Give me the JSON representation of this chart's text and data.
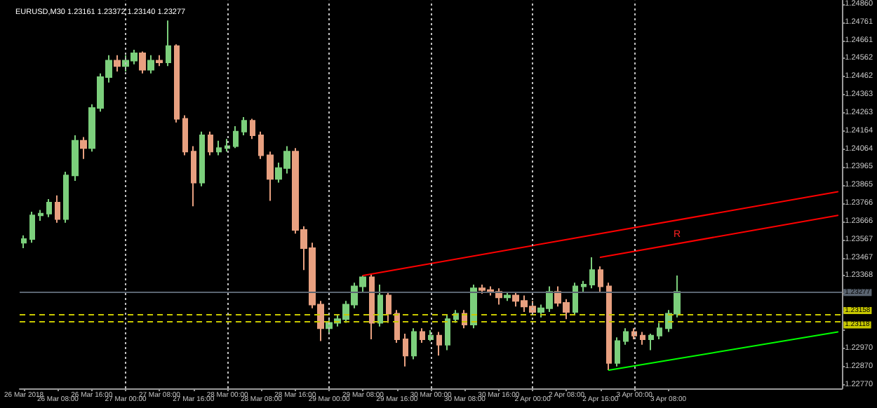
{
  "chart_data": {
    "type": "candlestick",
    "title": "EURUSD,M30 1.23161 1.23372 1.23140 1.23277",
    "categories": [
      "26 Mar 2018",
      null,
      null,
      null,
      "26 Mar 08:00",
      null,
      null,
      null,
      "26 Mar 16:00",
      null,
      null,
      null,
      "27 Mar 00:00",
      null,
      null,
      null,
      "27 Mar 08:00",
      null,
      null,
      null,
      "27 Mar 16:00",
      null,
      null,
      null,
      "28 Mar 00:00",
      null,
      null,
      null,
      "28 Mar 08:00",
      null,
      null,
      null,
      "28 Mar 16:00",
      null,
      null,
      null,
      "29 Mar 00:00",
      null,
      null,
      null,
      "29 Mar 08:00",
      null,
      null,
      null,
      "29 Mar 16:00",
      null,
      null,
      null,
      "30 Mar 00:00",
      null,
      null,
      null,
      "30 Mar 08:00",
      null,
      null,
      null,
      "30 Mar 16:00",
      null,
      null,
      null,
      "2 Apr 00:00",
      null,
      null,
      null,
      "2 Apr 08:00",
      null,
      null,
      null,
      "2 Apr 16:00",
      null,
      null,
      null,
      "3 Apr 00:00",
      null,
      null,
      null,
      "3 Apr 08:00",
      null,
      null,
      null,
      null,
      null,
      null,
      null,
      null,
      null,
      null,
      null,
      null,
      null,
      null,
      null,
      null,
      null,
      null,
      null,
      null
    ],
    "ohlc": [
      [
        1.2355,
        1.2359,
        1.2352,
        1.2357
      ],
      [
        1.2357,
        1.2372,
        1.2355,
        1.237
      ],
      [
        1.237,
        1.2373,
        1.2367,
        1.2371
      ],
      [
        1.2371,
        1.2379,
        1.2369,
        1.2377
      ],
      [
        1.2377,
        1.2381,
        1.2366,
        1.2368
      ],
      [
        1.2368,
        1.2394,
        1.2366,
        1.2392
      ],
      [
        1.2392,
        1.2414,
        1.2389,
        1.2411
      ],
      [
        1.2411,
        1.2413,
        1.2401,
        1.2407
      ],
      [
        1.2407,
        1.2431,
        1.2405,
        1.2429
      ],
      [
        1.2429,
        1.2448,
        1.2427,
        1.2446
      ],
      [
        1.2446,
        1.2458,
        1.2443,
        1.2455
      ],
      [
        1.2455,
        1.2458,
        1.2449,
        1.2452
      ],
      [
        1.2452,
        1.2458,
        1.2449,
        1.2455
      ],
      [
        1.2455,
        1.2461,
        1.2453,
        1.2459
      ],
      [
        1.2459,
        1.246,
        1.2448,
        1.245
      ],
      [
        1.245,
        1.2458,
        1.2448,
        1.2455
      ],
      [
        1.2455,
        1.2458,
        1.2452,
        1.2454
      ],
      [
        1.2454,
        1.2477,
        1.2452,
        1.2463
      ],
      [
        1.2463,
        1.2464,
        1.2421,
        1.2423
      ],
      [
        1.2423,
        1.2425,
        1.2403,
        1.2405
      ],
      [
        1.2405,
        1.2408,
        1.2375,
        1.2388
      ],
      [
        1.2388,
        1.2416,
        1.2386,
        1.2414
      ],
      [
        1.2414,
        1.2416,
        1.2403,
        1.2405
      ],
      [
        1.2405,
        1.2411,
        1.2403,
        1.2407
      ],
      [
        1.2407,
        1.2412,
        1.2405,
        1.2408
      ],
      [
        1.2408,
        1.2419,
        1.2407,
        1.2416
      ],
      [
        1.2416,
        1.2424,
        1.2414,
        1.2422
      ],
      [
        1.2422,
        1.2423,
        1.2412,
        1.2414
      ],
      [
        1.2414,
        1.2416,
        1.2401,
        1.2403
      ],
      [
        1.2403,
        1.2405,
        1.2378,
        1.239
      ],
      [
        1.239,
        1.2399,
        1.2388,
        1.2396
      ],
      [
        1.2396,
        1.2408,
        1.2393,
        1.2405
      ],
      [
        1.2405,
        1.2407,
        1.236,
        1.2362
      ],
      [
        1.2362,
        1.2364,
        1.234,
        1.2352
      ],
      [
        1.2352,
        1.2355,
        1.2319,
        1.2321
      ],
      [
        1.2321,
        1.2323,
        1.2301,
        1.2308
      ],
      [
        1.2308,
        1.2314,
        1.2305,
        1.2311
      ],
      [
        1.2311,
        1.2315,
        1.2309,
        1.2313
      ],
      [
        1.2313,
        1.2323,
        1.2311,
        1.2321
      ],
      [
        1.2321,
        1.2333,
        1.2319,
        1.2331
      ],
      [
        1.2331,
        1.2337,
        1.2328,
        1.2336
      ],
      [
        1.2336,
        1.2338,
        1.2302,
        1.2311
      ],
      [
        1.2311,
        1.2332,
        1.2309,
        1.2326
      ],
      [
        1.2326,
        1.2328,
        1.2311,
        1.2316
      ],
      [
        1.2316,
        1.2318,
        1.23,
        1.2302
      ],
      [
        1.2302,
        1.2305,
        1.2287,
        1.2293
      ],
      [
        1.2293,
        1.2308,
        1.2291,
        1.2306
      ],
      [
        1.2306,
        1.2308,
        1.23,
        1.2302
      ],
      [
        1.2302,
        1.2307,
        1.2301,
        1.2304
      ],
      [
        1.2304,
        1.2306,
        1.2293,
        1.2299
      ],
      [
        1.2299,
        1.2315,
        1.2296,
        1.2313
      ],
      [
        1.2313,
        1.2318,
        1.2311,
        1.2316
      ],
      [
        1.2316,
        1.2318,
        1.2308,
        1.231
      ],
      [
        1.231,
        1.2332,
        1.2308,
        1.233
      ],
      [
        1.233,
        1.2332,
        1.2327,
        1.2329
      ],
      [
        1.2329,
        1.2331,
        1.2326,
        1.2328
      ],
      [
        1.2328,
        1.233,
        1.2321,
        1.2325
      ],
      [
        1.2325,
        1.2328,
        1.2323,
        1.2326
      ],
      [
        1.2326,
        1.2328,
        1.232,
        1.2323
      ],
      [
        1.2323,
        1.2326,
        1.2317,
        1.232
      ],
      [
        1.232,
        1.2323,
        1.2315,
        1.2317
      ],
      [
        1.2317,
        1.2321,
        1.2314,
        1.2319
      ],
      [
        1.2319,
        1.2331,
        1.2317,
        1.2328
      ],
      [
        1.2328,
        1.2331,
        1.232,
        1.2322
      ],
      [
        1.2322,
        1.2324,
        1.2313,
        1.2317
      ],
      [
        1.2317,
        1.2333,
        1.2315,
        1.2331
      ],
      [
        1.2331,
        1.2334,
        1.2328,
        1.2332
      ],
      [
        1.2332,
        1.2347,
        1.233,
        1.234
      ],
      [
        1.234,
        1.2342,
        1.2328,
        1.2331
      ],
      [
        1.2331,
        1.2333,
        1.2285,
        1.2289
      ],
      [
        1.2289,
        1.2303,
        1.2287,
        1.2301
      ],
      [
        1.2301,
        1.2308,
        1.2299,
        1.2306
      ],
      [
        1.2306,
        1.2308,
        1.2302,
        1.2304
      ],
      [
        1.2304,
        1.2306,
        1.2299,
        1.2302
      ],
      [
        1.2302,
        1.2305,
        1.2296,
        1.2304
      ],
      [
        1.2304,
        1.2311,
        1.2302,
        1.2308
      ],
      [
        1.2308,
        1.2318,
        1.2306,
        1.2316
      ],
      [
        1.2316,
        1.2337,
        1.2314,
        1.2328
      ],
      null,
      null,
      null,
      null,
      null,
      null,
      null,
      null,
      null,
      null,
      null,
      null,
      null,
      null,
      null,
      null,
      null,
      null,
      null
    ],
    "series": [
      {
        "type": "line",
        "color": "#ff0000",
        "values": [
          null,
          null,
          null,
          null,
          null,
          null,
          null,
          null,
          null,
          null,
          null,
          null,
          null,
          null,
          null,
          null,
          null,
          null,
          null,
          null,
          null,
          null,
          null,
          null,
          null,
          null,
          null,
          null,
          null,
          null,
          null,
          null,
          null,
          null,
          null,
          null,
          null,
          null,
          null,
          null,
          1.2337,
          null,
          null,
          null,
          null,
          null,
          null,
          null,
          null,
          null,
          null,
          null,
          null,
          null,
          null,
          null,
          null,
          null,
          null,
          null,
          null,
          null,
          null,
          null,
          null,
          null,
          null,
          null,
          null,
          null,
          null,
          null,
          null,
          null,
          null,
          null,
          null,
          null,
          null,
          null,
          null,
          null,
          null,
          null,
          null,
          null,
          null,
          null,
          null,
          null,
          null,
          null,
          null,
          null,
          null,
          null,
          1.2383
        ]
      },
      {
        "type": "line",
        "color": "#ff0000",
        "values": [
          null,
          null,
          null,
          null,
          null,
          null,
          null,
          null,
          null,
          null,
          null,
          null,
          null,
          null,
          null,
          null,
          null,
          null,
          null,
          null,
          null,
          null,
          null,
          null,
          null,
          null,
          null,
          null,
          null,
          null,
          null,
          null,
          null,
          null,
          null,
          null,
          null,
          null,
          null,
          null,
          null,
          null,
          null,
          null,
          null,
          null,
          null,
          null,
          null,
          null,
          null,
          null,
          null,
          null,
          null,
          null,
          null,
          null,
          null,
          null,
          null,
          null,
          null,
          null,
          null,
          null,
          null,
          null,
          1.2347,
          null,
          null,
          null,
          null,
          null,
          null,
          null,
          null,
          null,
          null,
          null,
          null,
          null,
          null,
          null,
          null,
          null,
          null,
          null,
          null,
          null,
          null,
          null,
          null,
          null,
          null,
          null,
          1.237
        ]
      },
      {
        "type": "line",
        "color": "#00ff00",
        "values": [
          null,
          null,
          null,
          null,
          null,
          null,
          null,
          null,
          null,
          null,
          null,
          null,
          null,
          null,
          null,
          null,
          null,
          null,
          null,
          null,
          null,
          null,
          null,
          null,
          null,
          null,
          null,
          null,
          null,
          null,
          null,
          null,
          null,
          null,
          null,
          null,
          null,
          null,
          null,
          null,
          null,
          null,
          null,
          null,
          null,
          null,
          null,
          null,
          null,
          null,
          null,
          null,
          null,
          null,
          null,
          null,
          null,
          null,
          null,
          null,
          null,
          null,
          null,
          null,
          null,
          null,
          null,
          null,
          null,
          1.2285,
          null,
          null,
          null,
          null,
          null,
          null,
          null,
          null,
          null,
          null,
          null,
          null,
          null,
          null,
          null,
          null,
          null,
          null,
          null,
          null,
          null,
          null,
          null,
          null,
          null,
          null,
          1.2306
        ]
      }
    ],
    "ylim": [
      1.2275,
      1.2488
    ],
    "yticks": [
      {
        "value": 1.2486,
        "label": "1.24860"
      },
      {
        "value": 1.24761,
        "label": "1.24761"
      },
      {
        "value": 1.24661,
        "label": "1.24661"
      },
      {
        "value": 1.24562,
        "label": "1.24562"
      },
      {
        "value": 1.24462,
        "label": "1.24462"
      },
      {
        "value": 1.24363,
        "label": "1.24363"
      },
      {
        "value": 1.24263,
        "label": "1.24263"
      },
      {
        "value": 1.24164,
        "label": "1.24164"
      },
      {
        "value": 1.24064,
        "label": "1.24064"
      },
      {
        "value": 1.23965,
        "label": "1.23965"
      },
      {
        "value": 1.23865,
        "label": "1.23865"
      },
      {
        "value": 1.23766,
        "label": "1.23766"
      },
      {
        "value": 1.23666,
        "label": "1.23666"
      },
      {
        "value": 1.23567,
        "label": "1.23567"
      },
      {
        "value": 1.23467,
        "label": "1.23467"
      },
      {
        "value": 1.23368,
        "label": "1.23368"
      },
      {
        "value": 1.23268,
        "label": null
      },
      {
        "value": 1.23169,
        "label": null
      },
      {
        "value": 1.23069,
        "label": null
      },
      {
        "value": 1.2297,
        "label": "1.22970"
      },
      {
        "value": 1.2287,
        "label": "1.22870"
      },
      {
        "value": 1.2277,
        "label": "1.22770"
      }
    ],
    "ref_lines": [
      {
        "axis": "y",
        "value": 1.23277,
        "label": "1.23277",
        "color": "#5a6470",
        "line_style": "solid"
      },
      {
        "axis": "y",
        "value": 1.23158,
        "label": "1.23158",
        "color": "#c8c800",
        "line_style": "dashed"
      },
      {
        "axis": "y",
        "value": 1.23118,
        "label": "1.23118",
        "color": "#c8c800",
        "line_style": "dashed"
      },
      {
        "axis": "x",
        "value": "27 Mar 00:00",
        "color": "#c0c0c0",
        "line_style": "dotted"
      },
      {
        "axis": "x",
        "value": "28 Mar 00:00",
        "color": "#c0c0c0",
        "line_style": "dotted"
      },
      {
        "axis": "x",
        "value": "29 Mar 00:00",
        "color": "#c0c0c0",
        "line_style": "dotted"
      },
      {
        "axis": "x",
        "value": "30 Mar 00:00",
        "color": "#c0c0c0",
        "line_style": "dotted"
      },
      {
        "axis": "x",
        "value": "2 Apr 00:00",
        "color": "#c0c0c0",
        "line_style": "dotted"
      },
      {
        "axis": "x",
        "value": "3 Apr 00:00",
        "color": "#c0c0c0",
        "line_style": "dotted"
      }
    ],
    "annotations": [
      "R"
    ]
  }
}
